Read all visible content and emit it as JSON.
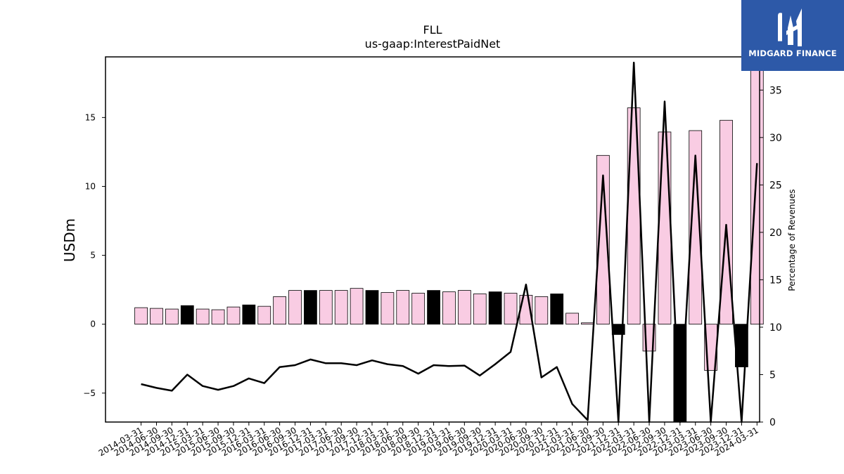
{
  "chart_data": {
    "type": "bar",
    "title": "FLL",
    "subtitle": "us-gaap:InterestPaidNet",
    "ylabel": "USDm",
    "y2label": "Percentage of Revenues",
    "ylim": [
      -7.1,
      19.4
    ],
    "y2lim": [
      0,
      38.5
    ],
    "yticks": [
      -5,
      0,
      5,
      10,
      15
    ],
    "y2ticks": [
      0,
      5,
      10,
      15,
      20,
      25,
      30,
      35
    ],
    "categories": [
      "2014-03-31",
      "2014-06-30",
      "2014-09-30",
      "2014-12-31",
      "2015-03-31",
      "2015-06-30",
      "2015-09-30",
      "2015-12-31",
      "2016-03-31",
      "2016-06-30",
      "2016-09-30",
      "2016-12-31",
      "2017-03-31",
      "2017-06-30",
      "2017-09-30",
      "2017-12-31",
      "2018-03-31",
      "2018-06-30",
      "2018-09-30",
      "2018-12-31",
      "2019-03-31",
      "2019-06-30",
      "2019-09-30",
      "2019-12-31",
      "2020-03-31",
      "2020-06-30",
      "2020-09-30",
      "2020-12-31",
      "2021-03-31",
      "2021-06-30",
      "2021-09-30",
      "2021-12-31",
      "2022-03-31",
      "2022-06-30",
      "2022-09-30",
      "2022-12-31",
      "2023-03-31",
      "2023-06-30",
      "2023-09-30",
      "2023-12-31",
      "2024-03-31"
    ],
    "series": [
      {
        "type": "bar",
        "values": [
          1.2,
          1.15,
          1.1,
          1.35,
          1.1,
          1.05,
          1.25,
          1.4,
          1.3,
          2.0,
          2.45,
          2.45,
          2.45,
          2.45,
          2.6,
          2.45,
          2.3,
          2.45,
          2.25,
          2.45,
          2.35,
          2.45,
          2.2,
          2.35,
          2.25,
          2.1,
          2.0,
          2.2,
          0.8,
          0.1,
          12.25,
          -0.75,
          15.7,
          -1.95,
          13.95,
          -7.1,
          14.05,
          -3.35,
          14.8,
          -3.1,
          19.0
        ],
        "highlight": [
          false,
          false,
          false,
          true,
          false,
          false,
          false,
          true,
          false,
          false,
          false,
          true,
          false,
          false,
          false,
          true,
          false,
          false,
          false,
          true,
          false,
          false,
          false,
          true,
          false,
          false,
          false,
          true,
          false,
          false,
          false,
          true,
          false,
          false,
          false,
          true,
          false,
          false,
          false,
          true,
          false
        ],
        "color": "#f9cce3",
        "highlight_color": "#000000"
      },
      {
        "type": "line",
        "axis": "right",
        "values": [
          4.0,
          3.6,
          3.3,
          5.0,
          3.8,
          3.4,
          3.8,
          4.6,
          4.1,
          5.8,
          6.0,
          6.6,
          6.2,
          6.2,
          6.0,
          6.5,
          6.1,
          5.9,
          5.1,
          6.0,
          5.9,
          5.95,
          4.9,
          6.1,
          7.4,
          14.5,
          4.7,
          5.8,
          1.9,
          0.2,
          26.0,
          0,
          37.9,
          0,
          33.8,
          0,
          28.1,
          0,
          20.8,
          0,
          27.3
        ],
        "color": "#000000"
      }
    ]
  },
  "logo": {
    "text": "MIDGARD FINANCE",
    "color": "#2d59a8"
  }
}
